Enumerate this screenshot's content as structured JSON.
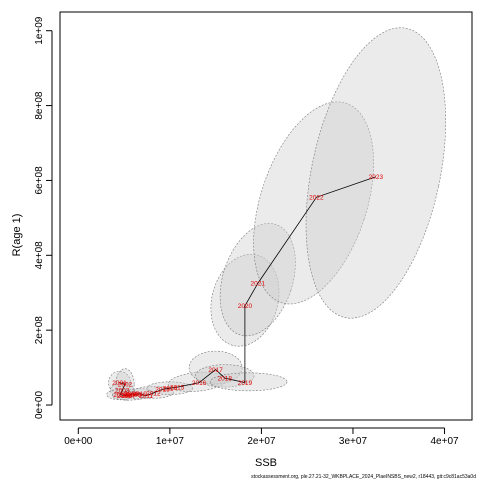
{
  "chart_data": {
    "type": "scatter",
    "xlabel": "SSB",
    "ylabel": "R(age 1)",
    "xlim": [
      -2000000,
      43000000
    ],
    "ylim": [
      -40000000,
      1050000000
    ],
    "x_ticks": [
      0,
      10000000,
      20000000,
      30000000,
      40000000
    ],
    "x_tick_labels": [
      "0e+00",
      "1e+07",
      "2e+07",
      "3e+07",
      "4e+07"
    ],
    "y_ticks": [
      0,
      200000000,
      400000000,
      600000000,
      800000000,
      1000000000
    ],
    "y_tick_labels": [
      "0e+00",
      "2e+08",
      "4e+08",
      "6e+08",
      "8e+08",
      "1e+09"
    ],
    "grid": false,
    "legend": "none",
    "colors": {
      "line": "#000000",
      "point_label": "#e00000",
      "ellipse_fill": "#cccccc",
      "ellipse_stroke": "#7a7a7a"
    },
    "points": [
      {
        "year": "2001",
        "x": 4500000,
        "y": 60000000
      },
      {
        "year": "2002",
        "x": 5100000,
        "y": 55000000
      },
      {
        "year": "2003",
        "x": 4800000,
        "y": 40000000
      },
      {
        "year": "2004",
        "x": 4600000,
        "y": 28000000
      },
      {
        "year": "2005",
        "x": 5000000,
        "y": 25000000
      },
      {
        "year": "2006",
        "x": 5300000,
        "y": 27000000
      },
      {
        "year": "2007",
        "x": 5500000,
        "y": 25000000
      },
      {
        "year": "2008",
        "x": 5800000,
        "y": 30000000
      },
      {
        "year": "2009",
        "x": 6100000,
        "y": 28000000
      },
      {
        "year": "2010",
        "x": 6700000,
        "y": 30000000
      },
      {
        "year": "2011",
        "x": 7400000,
        "y": 25000000
      },
      {
        "year": "2012",
        "x": 8200000,
        "y": 32000000
      },
      {
        "year": "2013",
        "x": 9200000,
        "y": 42000000
      },
      {
        "year": "2014",
        "x": 10000000,
        "y": 45000000
      },
      {
        "year": "2015",
        "x": 10800000,
        "y": 48000000
      },
      {
        "year": "2016",
        "x": 13200000,
        "y": 60000000
      },
      {
        "year": "2017",
        "x": 15000000,
        "y": 95000000
      },
      {
        "year": "2018",
        "x": 16000000,
        "y": 72000000
      },
      {
        "year": "2019",
        "x": 18200000,
        "y": 60000000
      },
      {
        "year": "2020",
        "x": 18200000,
        "y": 265000000
      },
      {
        "year": "2021",
        "x": 19600000,
        "y": 325000000
      },
      {
        "year": "2022",
        "x": 26000000,
        "y": 555000000
      },
      {
        "year": "2023",
        "x": 32500000,
        "y": 610000000
      }
    ],
    "ellipses": [
      {
        "year": "2001",
        "cx": 4500000,
        "cy": 60000000,
        "rx": 1200000,
        "ry": 30000000,
        "angle": 0
      },
      {
        "year": "2002",
        "cx": 5100000,
        "cy": 55000000,
        "rx": 1000000,
        "ry": 42000000,
        "angle": 0
      },
      {
        "year": "2003",
        "cx": 4800000,
        "cy": 40000000,
        "rx": 1300000,
        "ry": 20000000,
        "angle": 0
      },
      {
        "year": "2004",
        "cx": 4600000,
        "cy": 28000000,
        "rx": 1500000,
        "ry": 14000000,
        "angle": 0
      },
      {
        "year": "2007",
        "cx": 5500000,
        "cy": 25000000,
        "rx": 1800000,
        "ry": 12000000,
        "angle": 0
      },
      {
        "year": "2010",
        "cx": 6700000,
        "cy": 30000000,
        "rx": 1600000,
        "ry": 14000000,
        "angle": 0
      },
      {
        "year": "2012",
        "cx": 8200000,
        "cy": 34000000,
        "rx": 2200000,
        "ry": 16000000,
        "angle": 0
      },
      {
        "year": "2014",
        "cx": 10000000,
        "cy": 45000000,
        "rx": 2500000,
        "ry": 17000000,
        "angle": 0
      },
      {
        "year": "2016",
        "cx": 13000000,
        "cy": 62000000,
        "rx": 3200000,
        "ry": 25000000,
        "angle": -5
      },
      {
        "year": "2017",
        "cx": 15000000,
        "cy": 100000000,
        "rx": 2900000,
        "ry": 44000000,
        "angle": 0
      },
      {
        "year": "2018",
        "cx": 16000000,
        "cy": 78000000,
        "rx": 3200000,
        "ry": 30000000,
        "angle": 0
      },
      {
        "year": "2019",
        "cx": 18600000,
        "cy": 62000000,
        "rx": 4200000,
        "ry": 24000000,
        "angle": 0
      },
      {
        "year": "2020",
        "cx": 18200000,
        "cy": 280000000,
        "rx": 3600000,
        "ry": 125000000,
        "angle": 15
      },
      {
        "year": "2021",
        "cx": 19600000,
        "cy": 335000000,
        "rx": 3800000,
        "ry": 155000000,
        "angle": 18
      },
      {
        "year": "2022",
        "cx": 25700000,
        "cy": 540000000,
        "rx": 5800000,
        "ry": 280000000,
        "angle": 18
      },
      {
        "year": "2023",
        "cx": 32500000,
        "cy": 620000000,
        "rx": 7000000,
        "ry": 395000000,
        "angle": 12
      }
    ]
  },
  "footer_text": "stockassessment.org, ple.27.21-32_WKBPLACE_2024_PlaeINSBS_new2, r18443, git:c9c81ac53a0d"
}
